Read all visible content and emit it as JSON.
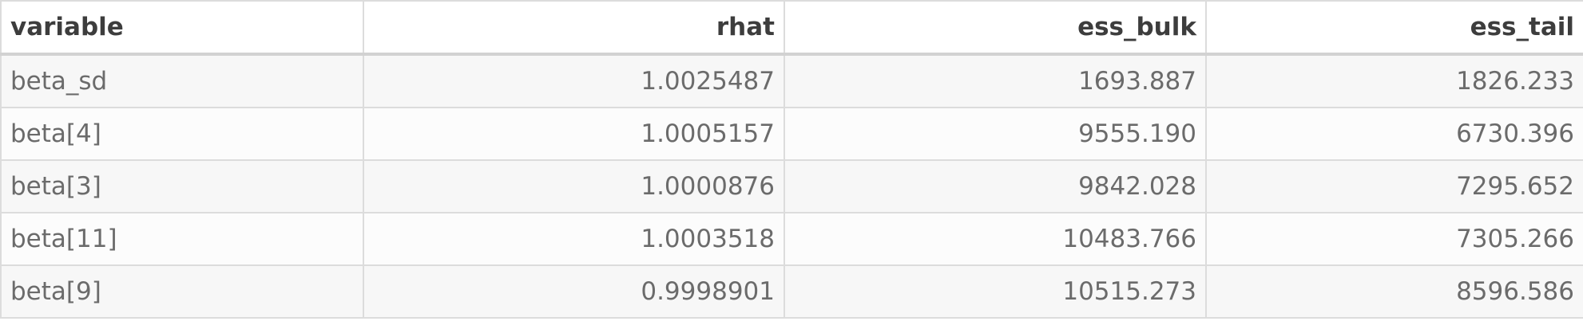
{
  "table": {
    "columns": [
      "variable",
      "rhat",
      "ess_bulk",
      "ess_tail"
    ],
    "rows": [
      [
        "beta_sd",
        "1.0025487",
        "1693.887",
        "1826.233"
      ],
      [
        "beta[4]",
        "1.0005157",
        "9555.190",
        "6730.396"
      ],
      [
        "beta[3]",
        "1.0000876",
        "9842.028",
        "7295.652"
      ],
      [
        "beta[11]",
        "1.0003518",
        "10483.766",
        "7305.266"
      ],
      [
        "beta[9]",
        "0.9998901",
        "10515.273",
        "8596.586"
      ]
    ]
  }
}
